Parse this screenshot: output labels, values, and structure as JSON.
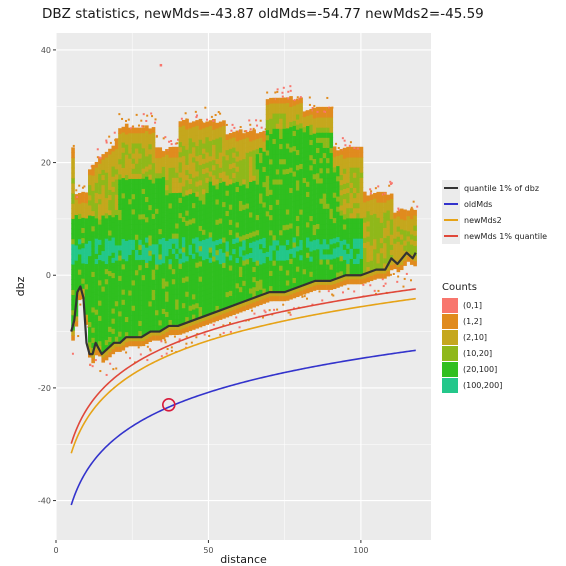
{
  "chart_data": {
    "type": "scatter",
    "title": "DBZ statistics, newMds=-43.87 oldMds=-54.77 newMds2=-45.59",
    "xlabel": "distance",
    "ylabel": "dbz",
    "xlim": [
      0,
      123
    ],
    "ylim": [
      -47,
      43
    ],
    "x_ticks": [
      0,
      50,
      100
    ],
    "y_ticks": [
      40,
      20,
      0,
      -20,
      -40
    ],
    "x_tick_labels": [
      "0",
      "50",
      "100"
    ],
    "y_tick_labels": [
      "40",
      "20",
      "0",
      "-20",
      "-40"
    ],
    "background": "#ebebeb",
    "grid": true,
    "legend_placement": "right",
    "series": [
      {
        "name": "quantile 1% of dbz",
        "color": "#333333",
        "x": [
          5,
          6,
          7,
          8,
          9,
          10,
          11,
          12,
          13,
          14,
          15,
          17,
          19,
          21,
          23,
          25,
          28,
          31,
          34,
          37,
          40,
          45,
          50,
          55,
          60,
          65,
          70,
          75,
          80,
          85,
          90,
          95,
          100,
          105,
          108,
          110,
          112,
          115,
          117,
          118
        ],
        "y": [
          -10,
          -8,
          -3,
          -2,
          -4,
          -12,
          -14,
          -14,
          -12,
          -13,
          -14,
          -13,
          -12,
          -12,
          -11,
          -11,
          -11,
          -10,
          -10,
          -9,
          -9,
          -8,
          -7,
          -6,
          -5,
          -4,
          -3,
          -3,
          -2,
          -1,
          -1,
          0,
          0,
          1,
          1,
          3,
          2,
          4,
          3,
          4
        ]
      },
      {
        "name": "oldMds",
        "color": "#3333cc",
        "formula": "-54.77 + 20*log10(distance)",
        "x_range": [
          5,
          118
        ]
      },
      {
        "name": "newMds2",
        "color": "#e6a317",
        "formula": "-45.59 + 20*log10(distance)",
        "x_range": [
          5,
          118
        ]
      },
      {
        "name": "newMds 1% quantile",
        "color": "#e0483a",
        "formula": "-43.87 + 20*log10(distance)",
        "x_range": [
          5,
          118
        ]
      }
    ],
    "density": {
      "legend_title": "Counts",
      "bins": [
        {
          "label": "(0,1]",
          "color": "#f8766d"
        },
        {
          "label": "(1,2]",
          "color": "#e08b1e"
        },
        {
          "label": "(2,10]",
          "color": "#c5a71d"
        },
        {
          "label": "(10,20]",
          "color": "#8fb81a"
        },
        {
          "label": "(20,100]",
          "color": "#2fbf1f"
        },
        {
          "label": "(100,200]",
          "color": "#23c78a"
        }
      ]
    },
    "annotation": {
      "type": "circle",
      "x": 37,
      "y": -23,
      "color": "#d81b3c"
    }
  }
}
